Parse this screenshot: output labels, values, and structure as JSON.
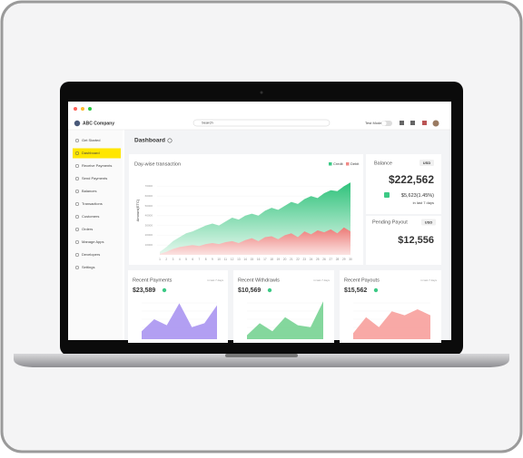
{
  "header": {
    "company": "ABC Company",
    "search_placeholder": "Search",
    "mode_label": "Test Mode"
  },
  "sidebar": {
    "items": [
      "Get Started",
      "Dashboard",
      "Receive Payments",
      "Send Payments",
      "Balances",
      "Transactions",
      "Customers",
      "Orders",
      "Manage Apps",
      "Developers",
      "Settings"
    ],
    "active": 1
  },
  "page_title": "Dashboard",
  "transaction_chart": {
    "type": "area",
    "title": "Day-wise transaction",
    "y_label": "Amount(ETC)",
    "x": [
      1,
      2,
      3,
      4,
      5,
      6,
      7,
      8,
      9,
      10,
      11,
      12,
      13,
      14,
      15,
      16,
      17,
      18,
      19,
      20,
      21,
      22,
      23,
      24,
      25,
      26,
      27,
      28,
      29,
      30
    ],
    "xlim": [
      1,
      30
    ],
    "series": [
      {
        "name": "Credit",
        "color": "#3cc985",
        "values": [
          3000,
          8000,
          14000,
          18000,
          22000,
          24000,
          27000,
          30000,
          32000,
          30000,
          34000,
          38000,
          36000,
          40000,
          42000,
          40000,
          45000,
          48000,
          46000,
          50000,
          54000,
          52000,
          57000,
          60000,
          58000,
          63000,
          66000,
          65000,
          70000,
          74000
        ]
      },
      {
        "name": "Debit",
        "color": "#f08a86",
        "values": [
          1000,
          3000,
          6000,
          8000,
          9000,
          10000,
          9000,
          11000,
          12000,
          11000,
          13000,
          14000,
          12000,
          15000,
          17000,
          14000,
          18000,
          19000,
          16000,
          20000,
          22000,
          18000,
          24000,
          21000,
          25000,
          23000,
          26000,
          22000,
          28000,
          24000
        ]
      }
    ],
    "ylim": [
      0,
      75000
    ],
    "yticks": [
      10000,
      20000,
      30000,
      40000,
      50000,
      60000,
      70000
    ]
  },
  "balance": {
    "title": "Balance",
    "currency": "USD",
    "amount": "$222,562",
    "change": "$5,623(1.45%)",
    "period": "in last 7 days"
  },
  "pending_payout": {
    "title": "Pending Payout",
    "currency": "USD",
    "amount": "$12,556"
  },
  "cards": [
    {
      "title": "Recent Payments",
      "period": "in last 7 days",
      "amount": "$23,589",
      "color": "#a48ef0",
      "values": [
        20,
        50,
        35,
        90,
        30,
        40,
        85
      ]
    },
    {
      "title": "Recent Withdrawls",
      "period": "in last 7 days",
      "amount": "$10,569",
      "color": "#6fd08c",
      "values": [
        10,
        40,
        20,
        55,
        35,
        30,
        95
      ]
    },
    {
      "title": "Recent Payouts",
      "period": "in last 7 days",
      "amount": "$15,562",
      "color": "#f79a96",
      "values": [
        15,
        55,
        30,
        70,
        60,
        75,
        60
      ]
    }
  ],
  "card_ylim": [
    0,
    100
  ]
}
